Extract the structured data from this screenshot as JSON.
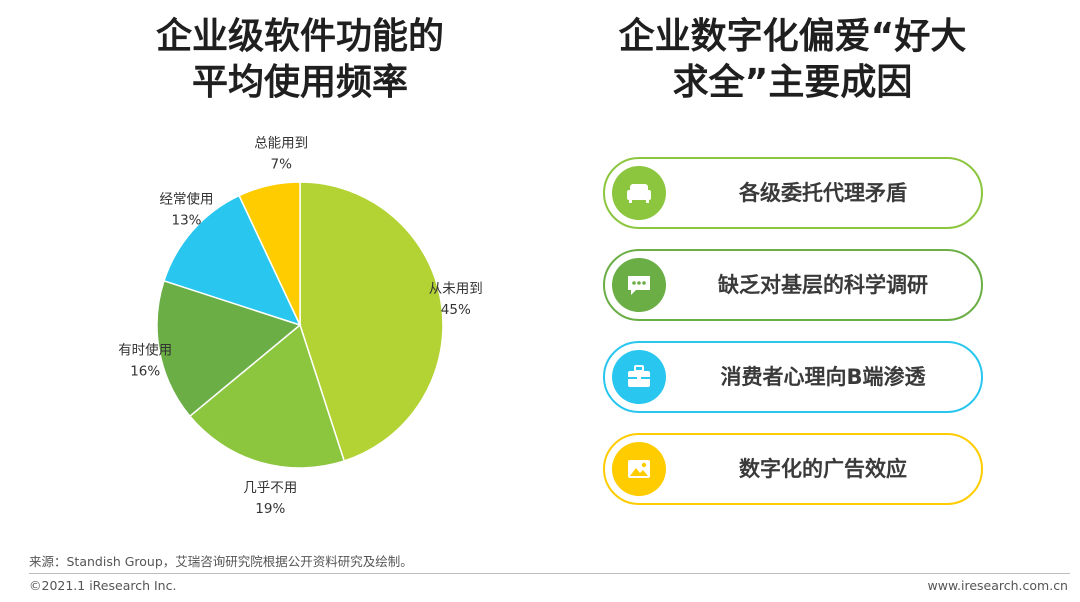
{
  "left_title": {
    "line1": "企业级软件功能的",
    "line2": "平均使用频率"
  },
  "right_title": {
    "line1": "企业数字化偏爱“好大",
    "line2": "求全”主要成因"
  },
  "chart_data": {
    "type": "pie",
    "unit": "%",
    "slices": [
      {
        "label": "从未用到",
        "value": 45,
        "color": "#b3d335"
      },
      {
        "label": "几乎不用",
        "value": 19,
        "color": "#8cc63f"
      },
      {
        "label": "有时使用",
        "value": 16,
        "color": "#6aae45"
      },
      {
        "label": "经常使用",
        "value": 13,
        "color": "#29c6ef"
      },
      {
        "label": "总能用到",
        "value": 7,
        "color": "#ffcc00"
      }
    ]
  },
  "reasons": [
    {
      "label": "各级委托代理矛盾",
      "icon": "sofa-icon",
      "color": "#8cc63f"
    },
    {
      "label": "缺乏对基层的科学调研",
      "icon": "chat-bubble-icon",
      "color": "#6aae45"
    },
    {
      "label": "消费者心理向B端渗透",
      "icon": "toolbox-icon",
      "color": "#29c6ef"
    },
    {
      "label": "数字化的广告效应",
      "icon": "image-icon",
      "color": "#ffcc00"
    }
  ],
  "footer": {
    "source": "来源：Standish Group，艾瑞咨询研究院根据公开资料研究及绘制。",
    "copyright": "©2021.1 iResearch Inc.",
    "website": "www.iresearch.com.cn"
  }
}
